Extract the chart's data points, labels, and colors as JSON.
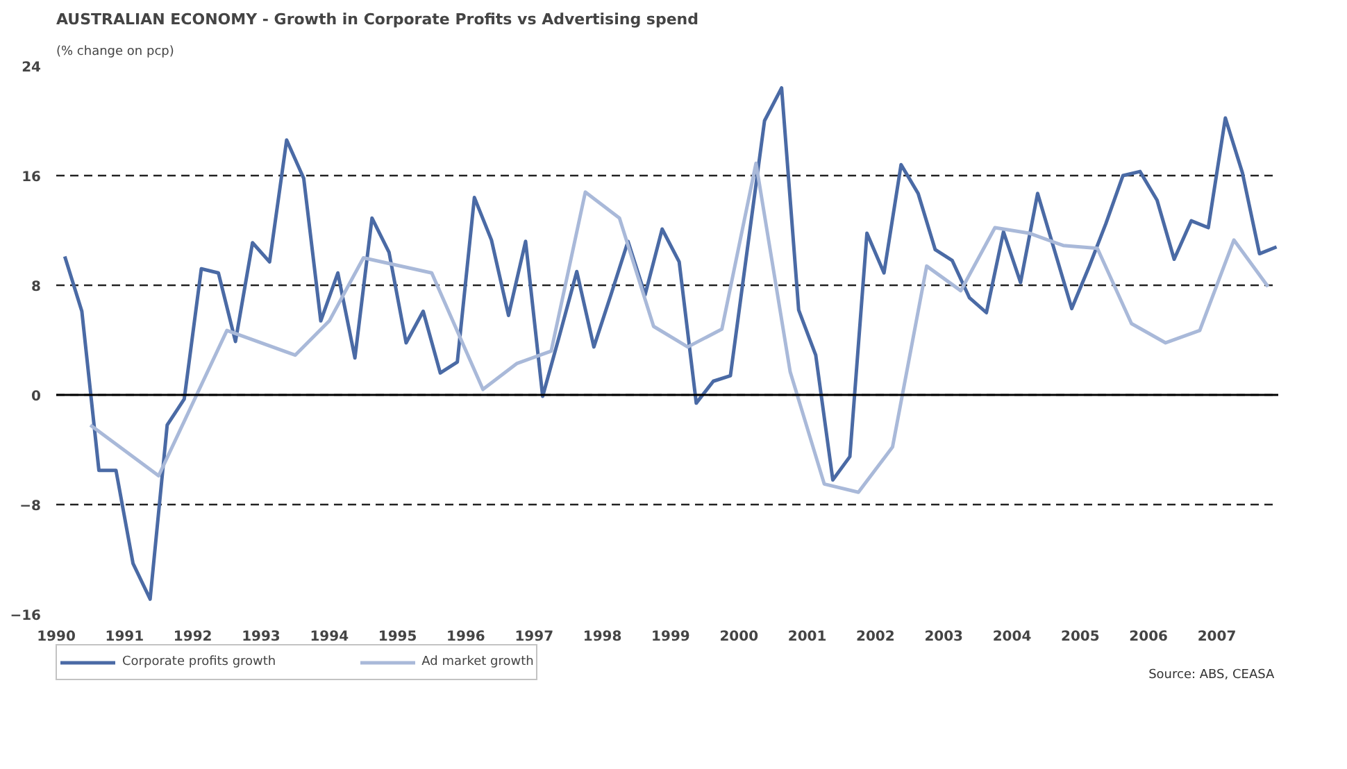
{
  "chart_data": {
    "type": "line",
    "title": "AUSTRALIAN ECONOMY - Growth in Corporate Profits vs Advertising spend",
    "ylabel": "(% change on pcp)",
    "xlim": [
      1990,
      2007.9
    ],
    "xticks": [
      1990,
      1991,
      1992,
      1993,
      1994,
      1995,
      1996,
      1997,
      1998,
      1999,
      2000,
      2001,
      2002,
      2003,
      2004,
      2005,
      2006,
      2007
    ],
    "ylim": [
      -16,
      24
    ],
    "yticks": [
      -16,
      -8,
      0,
      8,
      16,
      24
    ],
    "grid": "y",
    "legend": "bottom left",
    "marker": "none",
    "line_style": "solid",
    "ref_lines": [
      {
        "axis": "y",
        "value": 0,
        "color": "#000000",
        "line_style": "solid"
      }
    ],
    "annotations": [
      "Source:  ABS, CEASA"
    ],
    "series": [
      {
        "name": "Corporate profits growth",
        "color": "#4a6aa5",
        "x": [
          1990.125,
          1990.375,
          1990.625,
          1990.875,
          1991.125,
          1991.375,
          1991.625,
          1991.875,
          1992.125,
          1992.375,
          1992.625,
          1992.875,
          1993.125,
          1993.375,
          1993.625,
          1993.875,
          1994.125,
          1994.375,
          1994.625,
          1994.875,
          1995.125,
          1995.375,
          1995.625,
          1995.875,
          1996.125,
          1996.375,
          1996.625,
          1996.875,
          1997.125,
          1997.375,
          1997.625,
          1997.875,
          1998.125,
          1998.375,
          1998.625,
          1998.875,
          1999.125,
          1999.375,
          1999.625,
          1999.875,
          2000.125,
          2000.375,
          2000.625,
          2000.875,
          2001.125,
          2001.375,
          2001.625,
          2001.875,
          2002.125,
          2002.375,
          2002.625,
          2002.875,
          2003.125,
          2003.375,
          2003.625,
          2003.875,
          2004.125,
          2004.375,
          2004.625,
          2004.875,
          2005.125,
          2005.375,
          2005.625,
          2005.875,
          2006.125,
          2006.375,
          2006.625,
          2006.875,
          2007.125,
          2007.375,
          2007.625,
          2007.875
        ],
        "values": [
          10.1,
          6.1,
          -5.5,
          -5.5,
          -12.3,
          -14.9,
          -2.2,
          -0.3,
          9.2,
          8.9,
          3.9,
          11.1,
          9.7,
          18.6,
          15.8,
          5.4,
          8.9,
          2.7,
          12.9,
          10.4,
          3.8,
          6.1,
          1.6,
          2.4,
          14.4,
          11.3,
          5.8,
          11.2,
          -0.1,
          4.4,
          9.0,
          3.5,
          7.3,
          11.2,
          7.3,
          12.1,
          9.7,
          -0.6,
          1.0,
          1.4,
          10.7,
          20.0,
          22.4,
          6.2,
          2.9,
          -6.2,
          -4.5,
          11.8,
          8.9,
          16.8,
          14.7,
          10.6,
          9.8,
          7.1,
          6.0,
          11.9,
          8.2,
          14.7,
          10.5,
          6.3,
          9.3,
          12.5,
          16.0,
          16.3,
          14.2,
          9.9,
          12.7,
          12.2,
          20.2,
          16.2,
          10.3,
          10.8
        ]
      },
      {
        "name": "Ad market growth",
        "color": "#a9b9d9",
        "x": [
          1990.5,
          1991.5,
          1992.5,
          1993.5,
          1994.0,
          1994.5,
          1995.5,
          1996.25,
          1996.75,
          1997.25,
          1997.75,
          1998.25,
          1998.75,
          1999.25,
          1999.75,
          2000.25,
          2000.75,
          2001.25,
          2001.75,
          2002.25,
          2002.75,
          2003.25,
          2003.75,
          2004.25,
          2004.75,
          2005.25,
          2005.75,
          2006.25,
          2006.75,
          2007.25,
          2007.75
        ],
        "values": [
          -2.2,
          -5.9,
          4.7,
          2.9,
          5.4,
          10.0,
          8.9,
          0.4,
          2.3,
          3.2,
          14.8,
          12.9,
          5.0,
          3.5,
          4.8,
          16.9,
          1.7,
          -6.5,
          -7.1,
          -3.8,
          9.4,
          7.6,
          12.2,
          11.8,
          10.9,
          10.7,
          5.2,
          3.8,
          4.7,
          11.3,
          7.9
        ]
      }
    ]
  }
}
